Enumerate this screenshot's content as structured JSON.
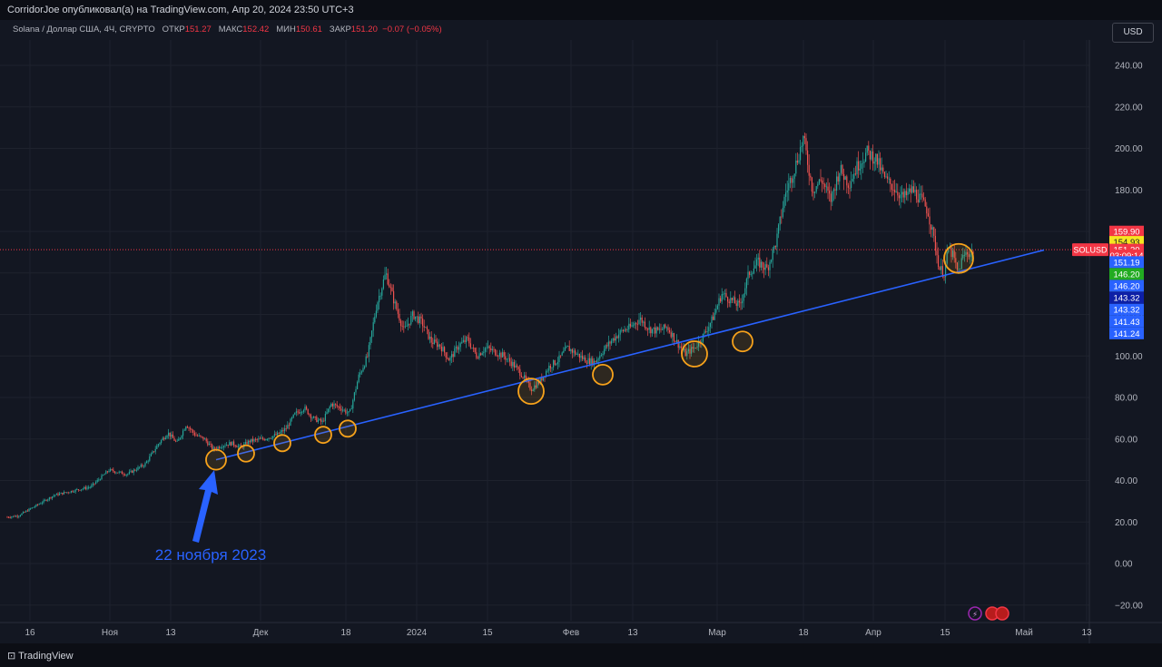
{
  "header": {
    "publisher": "CorridorJoe опубликовал(а) на TradingView.com, Апр 20, 2024 23:50 UTC+3"
  },
  "legend": {
    "symbol": "Solana / Доллар США, 4Ч, CRYPTO",
    "open_label": "ОТКР",
    "open": "151.27",
    "high_label": "МАКС",
    "high": "152.42",
    "low_label": "МИН",
    "low": "150.61",
    "close_label": "ЗАКР",
    "close": "151.20",
    "change": "−0.07 (−0.05%)"
  },
  "currency_button": "USD",
  "footer": {
    "logo": "TradingView"
  },
  "colors": {
    "background": "#131722",
    "up": "#26a69a",
    "down": "#ef5350",
    "trendline": "#2962ff",
    "circle": "#f7a21b"
  },
  "chart_data": {
    "type": "candlestick",
    "y_range": [
      -25,
      250
    ],
    "y_ticks": [
      "240.00",
      "220.00",
      "200.00",
      "180.00",
      "160.00",
      "140.00",
      "120.00",
      "100.00",
      "80.00",
      "60.00",
      "40.00",
      "20.00",
      "0.00",
      "−20.00"
    ],
    "y_tick_values": [
      240,
      220,
      200,
      180,
      160,
      140,
      120,
      100,
      80,
      60,
      40,
      20,
      0,
      -20
    ],
    "x_labels": [
      "16",
      "Ноя",
      "13",
      "Дек",
      "18",
      "2024",
      "15",
      "Фев",
      "13",
      "Мар",
      "18",
      "Апр",
      "15",
      "Май",
      "13"
    ],
    "price_path": [
      [
        0,
        22
      ],
      [
        20,
        23
      ],
      [
        40,
        28
      ],
      [
        60,
        33
      ],
      [
        80,
        35
      ],
      [
        100,
        37
      ],
      [
        120,
        45
      ],
      [
        140,
        43
      ],
      [
        160,
        48
      ],
      [
        175,
        58
      ],
      [
        185,
        63
      ],
      [
        195,
        58
      ],
      [
        205,
        67
      ],
      [
        215,
        62
      ],
      [
        225,
        60
      ],
      [
        235,
        55
      ],
      [
        245,
        57
      ],
      [
        255,
        58
      ],
      [
        265,
        56
      ],
      [
        275,
        59
      ],
      [
        290,
        60
      ],
      [
        305,
        62
      ],
      [
        315,
        65
      ],
      [
        325,
        72
      ],
      [
        335,
        75
      ],
      [
        345,
        70
      ],
      [
        355,
        68
      ],
      [
        365,
        77
      ],
      [
        375,
        75
      ],
      [
        385,
        72
      ],
      [
        395,
        90
      ],
      [
        405,
        100
      ],
      [
        415,
        125
      ],
      [
        425,
        140
      ],
      [
        435,
        125
      ],
      [
        445,
        112
      ],
      [
        455,
        120
      ],
      [
        465,
        116
      ],
      [
        475,
        107
      ],
      [
        485,
        105
      ],
      [
        495,
        98
      ],
      [
        505,
        105
      ],
      [
        515,
        108
      ],
      [
        525,
        100
      ],
      [
        535,
        104
      ],
      [
        545,
        102
      ],
      [
        555,
        100
      ],
      [
        565,
        96
      ],
      [
        575,
        91
      ],
      [
        585,
        84
      ],
      [
        595,
        88
      ],
      [
        605,
        95
      ],
      [
        615,
        98
      ],
      [
        625,
        104
      ],
      [
        635,
        101
      ],
      [
        645,
        98
      ],
      [
        655,
        97
      ],
      [
        665,
        103
      ],
      [
        675,
        108
      ],
      [
        685,
        112
      ],
      [
        695,
        114
      ],
      [
        705,
        118
      ],
      [
        715,
        113
      ],
      [
        725,
        112
      ],
      [
        735,
        114
      ],
      [
        745,
        107
      ],
      [
        755,
        101
      ],
      [
        765,
        104
      ],
      [
        775,
        110
      ],
      [
        785,
        118
      ],
      [
        795,
        130
      ],
      [
        805,
        127
      ],
      [
        815,
        124
      ],
      [
        825,
        140
      ],
      [
        835,
        145
      ],
      [
        845,
        142
      ],
      [
        855,
        155
      ],
      [
        865,
        178
      ],
      [
        875,
        190
      ],
      [
        885,
        205
      ],
      [
        895,
        180
      ],
      [
        905,
        185
      ],
      [
        915,
        175
      ],
      [
        925,
        190
      ],
      [
        935,
        183
      ],
      [
        945,
        192
      ],
      [
        955,
        198
      ],
      [
        965,
        195
      ],
      [
        975,
        185
      ],
      [
        985,
        181
      ],
      [
        995,
        176
      ],
      [
        1005,
        180
      ],
      [
        1015,
        175
      ],
      [
        1022,
        170
      ],
      [
        1028,
        158
      ],
      [
        1035,
        142
      ],
      [
        1040,
        140
      ],
      [
        1045,
        152
      ],
      [
        1050,
        148
      ],
      [
        1055,
        140
      ],
      [
        1060,
        147
      ],
      [
        1065,
        150
      ],
      [
        1070,
        149
      ],
      [
        1073,
        151.2
      ]
    ],
    "trendline": {
      "from": {
        "x": 238,
        "y": 50
      },
      "to": {
        "x": 1150,
        "y": 151
      }
    },
    "highlight_circles": [
      {
        "x": 238,
        "y": 50,
        "r": 11
      },
      {
        "x": 271,
        "y": 53,
        "r": 9
      },
      {
        "x": 311,
        "y": 58,
        "r": 9
      },
      {
        "x": 356,
        "y": 62,
        "r": 9
      },
      {
        "x": 383,
        "y": 65,
        "r": 9
      },
      {
        "x": 585,
        "y": 83,
        "r": 14
      },
      {
        "x": 664,
        "y": 91,
        "r": 11
      },
      {
        "x": 765,
        "y": 101,
        "r": 14
      },
      {
        "x": 818,
        "y": 107,
        "r": 11
      },
      {
        "x": 1056,
        "y": 147,
        "r": 16
      }
    ],
    "current_price_line": 151.2,
    "price_badges": [
      {
        "label": "159.90",
        "value": 159.9,
        "bg": "#f23645",
        "fg": "#ffffff"
      },
      {
        "label": "154.93",
        "value": 154.93,
        "bg": "#f5e61f",
        "fg": "#131722"
      },
      {
        "label": "151.20",
        "value": 151.2,
        "bg": "#f23645",
        "fg": "#ffffff"
      },
      {
        "label": "03:09:14",
        "value": 148.4,
        "bg": "#f23645",
        "fg": "#ffffff"
      },
      {
        "label": "151.19",
        "value": 145.2,
        "bg": "#2962ff",
        "fg": "#ffffff"
      },
      {
        "label": "146.20",
        "value": 139.5,
        "bg": "#22ab21",
        "fg": "#ffffff"
      },
      {
        "label": "146.20",
        "value": 133.8,
        "bg": "#2962ff",
        "fg": "#ffffff"
      },
      {
        "label": "143.32",
        "value": 128.0,
        "bg": "#0d1fa6",
        "fg": "#ffffff"
      },
      {
        "label": "143.32",
        "value": 122.3,
        "bg": "#2962ff",
        "fg": "#ffffff"
      },
      {
        "label": "141.43",
        "value": 116.6,
        "bg": "#2962ff",
        "fg": "#ffffff"
      },
      {
        "label": "141.24",
        "value": 110.9,
        "bg": "#2962ff",
        "fg": "#ffffff"
      }
    ],
    "symbol_badge": "SOLUSD",
    "annotation": {
      "text": "22 ноября 2023"
    }
  }
}
